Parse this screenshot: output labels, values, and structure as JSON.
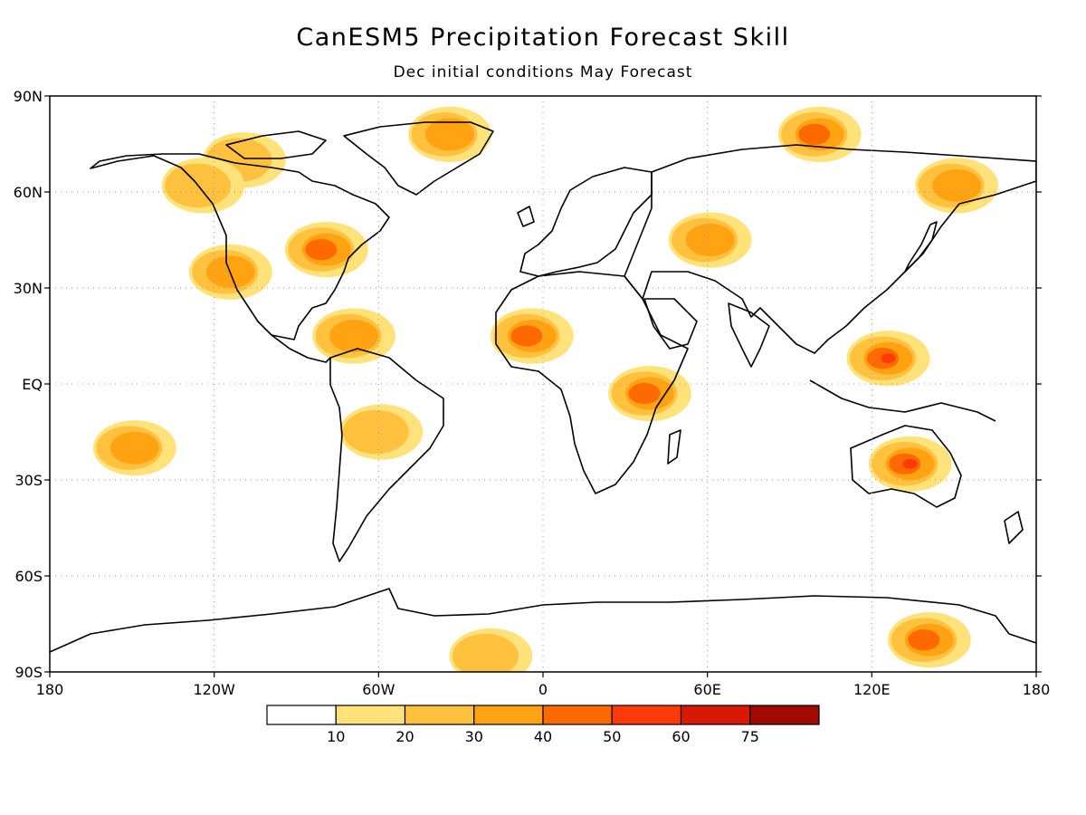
{
  "title": "CanESM5 Precipitation Forecast Skill",
  "subtitle": "Dec initial conditions   May Forecast",
  "map": {
    "lat_labels": [
      "90N",
      "60N",
      "30N",
      "EQ",
      "30S",
      "60S",
      "90S"
    ],
    "lon_labels": [
      "180",
      "120W",
      "60W",
      "0",
      "60E",
      "120E",
      "180"
    ],
    "grid": "dotted"
  },
  "legend": {
    "colors": [
      "#ffffff",
      "#ffe27a",
      "#ffc13e",
      "#ffa313",
      "#ff6a00",
      "#ff3a0a",
      "#d81a04",
      "#a00a00"
    ],
    "labels": [
      "10",
      "20",
      "30",
      "40",
      "50",
      "60",
      "75"
    ]
  },
  "skill_patches": [
    {
      "region": "Arctic Canada",
      "lon": -110,
      "lat": 70,
      "level": 2
    },
    {
      "region": "Greenland",
      "lon": -35,
      "lat": 78,
      "level": 3
    },
    {
      "region": "Western Canada",
      "lon": -125,
      "lat": 62,
      "level": 2
    },
    {
      "region": "Eastern US",
      "lon": -80,
      "lat": 42,
      "level": 4
    },
    {
      "region": "Western US",
      "lon": -115,
      "lat": 35,
      "level": 3
    },
    {
      "region": "Caribbean",
      "lon": -70,
      "lat": 15,
      "level": 3
    },
    {
      "region": "West Africa",
      "lon": -5,
      "lat": 15,
      "level": 4
    },
    {
      "region": "East Africa",
      "lon": 38,
      "lat": -3,
      "level": 4
    },
    {
      "region": "Southeast Asia",
      "lon": 125,
      "lat": 8,
      "level": 5
    },
    {
      "region": "Australia",
      "lon": 133,
      "lat": -25,
      "level": 5
    },
    {
      "region": "Eastern Siberia",
      "lon": 150,
      "lat": 62,
      "level": 3
    },
    {
      "region": "Siberian Arctic",
      "lon": 100,
      "lat": 78,
      "level": 4
    },
    {
      "region": "Central Asia",
      "lon": 60,
      "lat": 45,
      "level": 3
    },
    {
      "region": "South America",
      "lon": -60,
      "lat": -15,
      "level": 2
    },
    {
      "region": "South Pacific",
      "lon": -150,
      "lat": -20,
      "level": 3
    },
    {
      "region": "Antarctica Weddell",
      "lon": -20,
      "lat": -85,
      "level": 2
    },
    {
      "region": "Antarctica East",
      "lon": 140,
      "lat": -80,
      "level": 4
    }
  ]
}
